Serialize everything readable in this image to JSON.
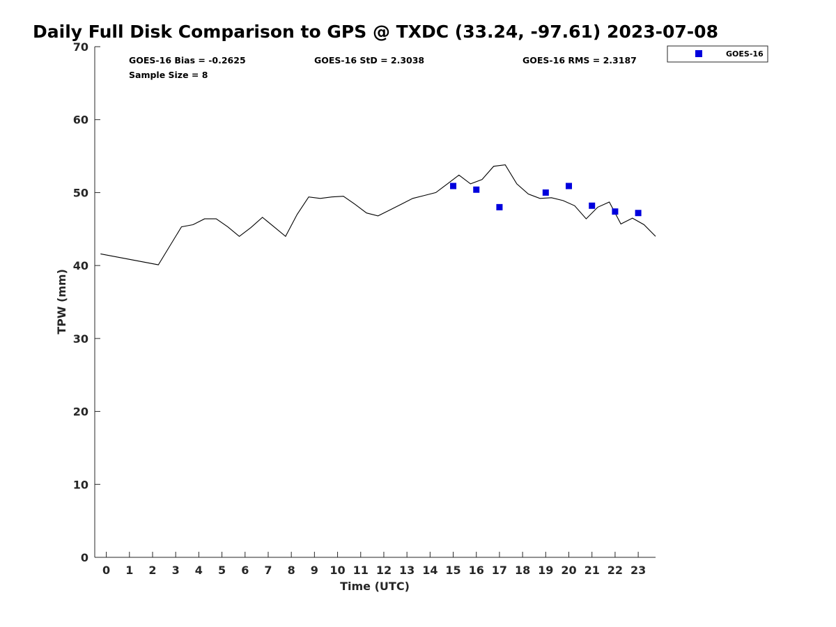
{
  "chart_data": {
    "type": "line+scatter",
    "title": "Daily Full Disk Comparison to GPS @ TXDC (33.24, -97.61) 2023-07-08",
    "xlabel": "Time (UTC)",
    "ylabel": "TPW (mm)",
    "xlim": [
      -0.5,
      23.75
    ],
    "ylim": [
      0,
      70
    ],
    "xticks": [
      0,
      1,
      2,
      3,
      4,
      5,
      6,
      7,
      8,
      9,
      10,
      11,
      12,
      13,
      14,
      15,
      16,
      17,
      18,
      19,
      20,
      21,
      22,
      23
    ],
    "yticks": [
      0,
      10,
      20,
      30,
      40,
      50,
      60,
      70
    ],
    "grid": false,
    "legend_position": "top-right (outside)",
    "stats": {
      "bias": "GOES-16 Bias = -0.2625",
      "std": "GOES-16 StD = 2.3038",
      "rms": "GOES-16 RMS = 2.3187",
      "sample": "Sample Size = 8"
    },
    "series": [
      {
        "name": "GPS",
        "kind": "line",
        "color": "#000000",
        "x": [
          -0.25,
          2.25,
          3.25,
          3.75,
          4.25,
          4.75,
          5.25,
          5.75,
          6.25,
          6.75,
          7.25,
          7.75,
          8.25,
          8.75,
          9.25,
          9.75,
          10.25,
          10.75,
          11.25,
          11.75,
          12.25,
          12.75,
          13.25,
          13.75,
          14.25,
          14.75,
          15.25,
          15.75,
          16.25,
          16.75,
          17.25,
          17.75,
          18.25,
          18.75,
          19.25,
          19.75,
          20.25,
          20.75,
          21.25,
          21.75,
          22.25,
          22.75,
          23.25,
          23.75
        ],
        "y": [
          41.6,
          40.1,
          45.3,
          45.6,
          46.4,
          46.4,
          45.3,
          44.0,
          45.2,
          46.6,
          45.3,
          44.0,
          47.0,
          49.4,
          49.2,
          49.4,
          49.5,
          48.4,
          47.2,
          46.8,
          47.6,
          48.4,
          49.2,
          49.6,
          50.0,
          51.2,
          52.4,
          51.2,
          51.8,
          53.6,
          53.8,
          51.2,
          49.8,
          49.2,
          49.3,
          48.9,
          48.2,
          46.4,
          48.0,
          48.7,
          45.7,
          46.5,
          45.6,
          44.0
        ]
      },
      {
        "name": "GOES-16",
        "kind": "scatter",
        "marker": "square",
        "color": "#0000dd",
        "x": [
          15,
          16,
          17,
          19,
          20,
          21,
          22,
          23
        ],
        "y": [
          50.9,
          50.4,
          48.0,
          50.0,
          50.9,
          48.2,
          47.4,
          47.2
        ]
      }
    ],
    "legend": [
      "GOES-16"
    ]
  }
}
